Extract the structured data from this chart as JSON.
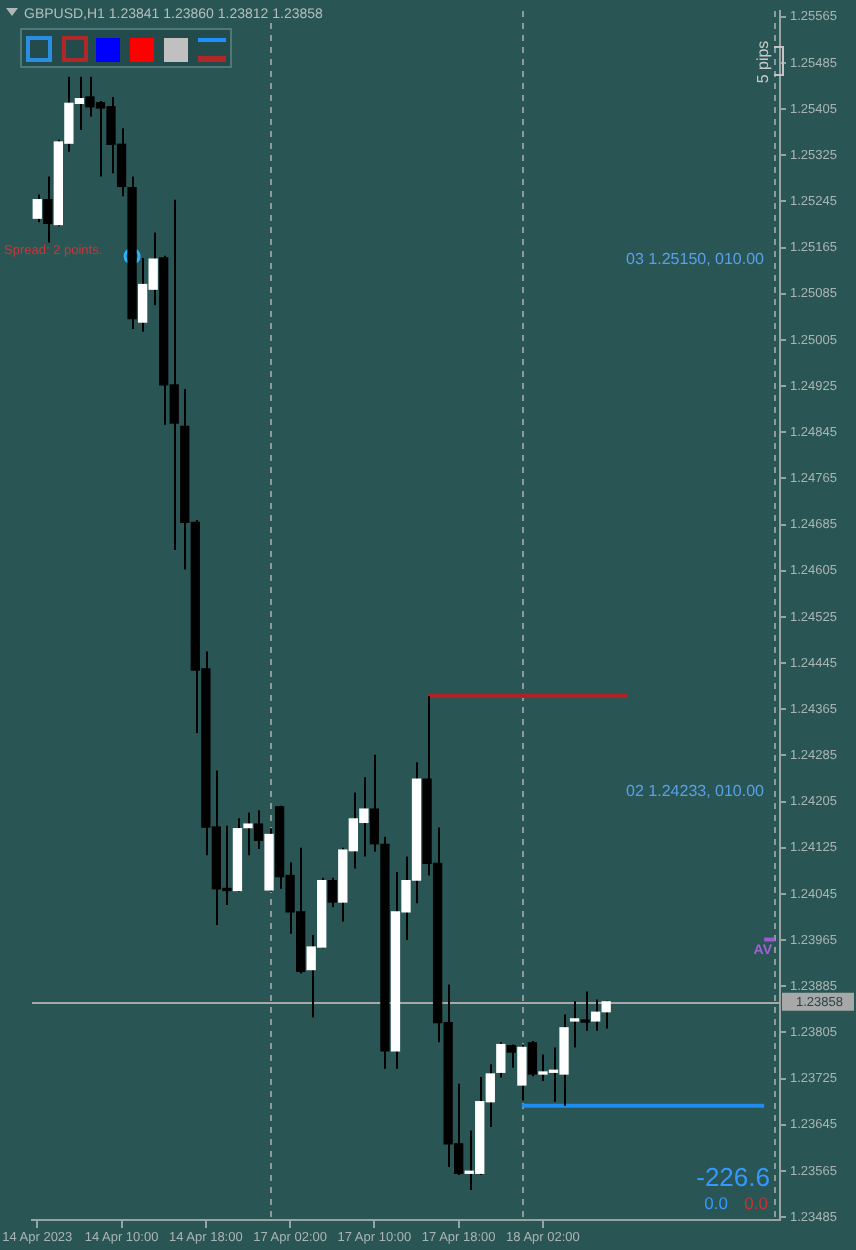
{
  "chart_data": {
    "type": "candlestick",
    "title": "GBPUSD,H1 1.23841 1.23860 1.23812 1.23858",
    "categories": [
      "14 Apr 2023",
      null,
      null,
      null,
      null,
      null,
      null,
      null,
      "14 Apr 10:00",
      null,
      null,
      null,
      null,
      null,
      null,
      null,
      "14 Apr 18:00",
      null,
      null,
      null,
      null,
      null,
      null,
      null,
      "17 Apr 02:00",
      null,
      null,
      null,
      null,
      null,
      null,
      null,
      "17 Apr 10:00",
      null,
      null,
      null,
      null,
      null,
      null,
      null,
      "17 Apr 18:00",
      null,
      null,
      null,
      null,
      null,
      null,
      null,
      "18 Apr 02:00",
      null,
      null,
      null,
      null,
      null,
      null,
      null,
      null,
      null,
      null,
      null,
      null,
      null,
      null,
      null,
      null,
      null,
      null,
      null,
      null,
      null,
      null
    ],
    "ohlc": [
      [
        1.25216,
        1.25257,
        1.25209,
        1.25248
      ],
      [
        1.25248,
        1.25288,
        1.25174,
        1.25207
      ],
      [
        1.25205,
        1.25352,
        1.25202,
        1.25348
      ],
      [
        1.25346,
        1.25461,
        1.25331,
        1.25415
      ],
      [
        1.25415,
        1.25461,
        1.25369,
        1.25423
      ],
      [
        1.25426,
        1.25461,
        1.25392,
        1.25409
      ],
      [
        1.25416,
        1.25419,
        1.25288,
        1.25407
      ],
      [
        1.25409,
        1.25426,
        1.25294,
        1.25344
      ],
      [
        1.25344,
        1.25372,
        1.25254,
        1.25271
      ],
      [
        1.25269,
        1.25288,
        1.25024,
        1.25042
      ],
      [
        1.25036,
        1.25147,
        1.25019,
        1.25101
      ],
      [
        1.25093,
        1.25191,
        1.25065,
        1.25145
      ],
      [
        1.25147,
        1.25151,
        1.24858,
        1.24927
      ],
      [
        1.24927,
        1.25248,
        1.24641,
        1.24861
      ],
      [
        1.24855,
        1.2492,
        1.24607,
        1.24689
      ],
      [
        1.24689,
        1.24693,
        1.24324,
        1.24433
      ],
      [
        1.24435,
        1.24465,
        1.24112,
        1.24161
      ],
      [
        1.24161,
        1.24259,
        1.23991,
        1.24054
      ],
      [
        1.24052,
        1.24163,
        1.24026,
        1.24051
      ],
      [
        1.24051,
        1.24176,
        1.24049,
        1.24158
      ],
      [
        1.2416,
        1.24186,
        1.24112,
        1.24166
      ],
      [
        1.24166,
        1.2419,
        1.24123,
        1.24138
      ],
      [
        1.24052,
        1.24159,
        1.24049,
        1.24148
      ],
      [
        1.24196,
        1.24198,
        1.24054,
        1.24075
      ],
      [
        1.24077,
        1.241,
        1.23976,
        1.24014
      ],
      [
        1.24014,
        1.24125,
        1.23907,
        1.23911
      ],
      [
        1.23914,
        1.23974,
        1.23831,
        1.23953
      ],
      [
        1.23953,
        1.24073,
        1.23951,
        1.24068
      ],
      [
        1.24068,
        1.24073,
        1.24022,
        1.24031
      ],
      [
        1.24031,
        1.24125,
        1.23997,
        1.24121
      ],
      [
        1.2412,
        1.24221,
        1.24089,
        1.24175
      ],
      [
        1.24169,
        1.24247,
        1.2411,
        1.24192
      ],
      [
        1.24192,
        1.24286,
        1.24118,
        1.24132
      ],
      [
        1.24131,
        1.24144,
        1.23742,
        1.23773
      ],
      [
        1.23773,
        1.24083,
        1.23742,
        1.24014
      ],
      [
        1.24014,
        1.2411,
        1.23965,
        1.24068
      ],
      [
        1.24069,
        1.24273,
        1.24029,
        1.24244
      ],
      [
        1.24244,
        1.24388,
        1.24077,
        1.24098
      ],
      [
        1.24098,
        1.2416,
        1.23788,
        1.23822
      ],
      [
        1.23822,
        1.23888,
        1.23572,
        1.23612
      ],
      [
        1.23612,
        1.23716,
        1.23558,
        1.23561
      ],
      [
        1.23561,
        1.23635,
        1.23532,
        1.23563
      ],
      [
        1.23561,
        1.23728,
        1.23558,
        1.23685
      ],
      [
        1.23685,
        1.2375,
        1.23641,
        1.23733
      ],
      [
        1.23736,
        1.23788,
        1.23727,
        1.23784
      ],
      [
        1.23782,
        1.23784,
        1.23744,
        1.23771
      ],
      [
        1.23714,
        1.23784,
        1.23687,
        1.23779
      ],
      [
        1.23787,
        1.2379,
        1.23729,
        1.23733
      ],
      [
        1.23733,
        1.23767,
        1.23721,
        1.23734
      ],
      [
        1.23736,
        1.23779,
        1.23685,
        1.23737
      ],
      [
        1.23733,
        1.23836,
        1.23678,
        1.23813
      ],
      [
        1.23825,
        1.23859,
        1.23779,
        1.23825
      ],
      [
        1.23825,
        1.23876,
        1.23808,
        1.23823
      ],
      [
        1.23825,
        1.23862,
        1.23808,
        1.2384
      ],
      [
        1.23841,
        1.2386,
        1.23812,
        1.23858
      ],
      null,
      null,
      null,
      null,
      null,
      null,
      null,
      null,
      null,
      null,
      null,
      null,
      null,
      null,
      null,
      null
    ],
    "colors": [
      "#ffffff",
      "#000000",
      "#ffffff",
      "#ffffff",
      "#ffffff",
      "#000000",
      "#000000",
      "#000000",
      "#000000",
      "#000000",
      "#ffffff",
      "#ffffff",
      "#000000",
      "#000000",
      "#000000",
      "#000000",
      "#000000",
      "#000000",
      "#000000",
      "#ffffff",
      "#ffffff",
      "#000000",
      "#ffffff",
      "#000000",
      "#000000",
      "#000000",
      "#ffffff",
      "#ffffff",
      "#000000",
      "#ffffff",
      "#ffffff",
      "#ffffff",
      "#000000",
      "#000000",
      "#ffffff",
      "#ffffff",
      "#ffffff",
      "#000000",
      "#000000",
      "#000000",
      "#000000",
      "#ffffff",
      "#ffffff",
      "#ffffff",
      "#ffffff",
      "#000000",
      "#ffffff",
      "#000000",
      "#ffffff",
      "#ffffff",
      "#ffffff",
      "#ffffff",
      "#000000",
      "#ffffff",
      "#ffffff",
      null,
      null,
      null,
      null,
      null,
      null,
      null,
      null,
      null,
      null,
      null,
      null,
      null,
      null,
      null,
      null
    ],
    "color": "#000000",
    "series": [
      {
        "type": "line",
        "color": "#b22222",
        "values": [
          null,
          null,
          null,
          null,
          null,
          null,
          null,
          null,
          null,
          null,
          null,
          null,
          null,
          null,
          null,
          null,
          null,
          null,
          null,
          null,
          null,
          null,
          null,
          null,
          null,
          null,
          null,
          null,
          null,
          null,
          null,
          null,
          null,
          null,
          null,
          null,
          null,
          1.24388,
          1.24388,
          1.24388,
          1.24388,
          1.24388,
          1.24388,
          1.24388,
          1.24388,
          1.24388,
          1.24388,
          1.24388,
          1.24388,
          1.24388,
          1.24388,
          1.24388,
          1.24388,
          1.24388,
          1.24388,
          1.24388,
          1.24388,
          null,
          null,
          null,
          null,
          null,
          null,
          null,
          null,
          null,
          null,
          null,
          null,
          null,
          null
        ]
      },
      {
        "type": "line",
        "color": "#1e8cf0",
        "values": [
          null,
          null,
          null,
          null,
          null,
          null,
          null,
          null,
          null,
          null,
          null,
          null,
          null,
          null,
          null,
          null,
          null,
          null,
          null,
          null,
          null,
          null,
          null,
          null,
          null,
          null,
          null,
          null,
          null,
          null,
          null,
          null,
          null,
          null,
          null,
          null,
          null,
          null,
          null,
          null,
          null,
          null,
          null,
          null,
          null,
          null,
          1.23678,
          1.23678,
          1.23678,
          1.23678,
          1.23678,
          1.23678,
          1.23678,
          1.23678,
          1.23678,
          1.23678,
          1.23678,
          1.23678,
          1.23678,
          1.23678,
          1.23678,
          1.23678,
          1.23678,
          1.23678,
          1.23678,
          1.23678,
          1.23678,
          1.23678,
          1.23678,
          1.23678,
          null
        ]
      },
      {
        "type": "line",
        "color": "#9a5ad0",
        "values": [
          null,
          null,
          null,
          null,
          null,
          null,
          null,
          null,
          null,
          null,
          null,
          null,
          null,
          null,
          null,
          null,
          null,
          null,
          null,
          null,
          null,
          null,
          null,
          null,
          null,
          null,
          null,
          null,
          null,
          null,
          null,
          null,
          null,
          null,
          null,
          null,
          null,
          null,
          null,
          null,
          null,
          null,
          null,
          null,
          null,
          null,
          null,
          null,
          null,
          null,
          null,
          null,
          null,
          null,
          null,
          null,
          null,
          null,
          null,
          null,
          null,
          null,
          null,
          null,
          null,
          null,
          null,
          null,
          null,
          1.23966,
          1.23966
        ]
      },
      {
        "type": "scatter",
        "color": "#2eb4ff",
        "marker": "circle",
        "values": [
          null,
          null,
          null,
          null,
          null,
          null,
          null,
          null,
          null,
          1.2515,
          null,
          null,
          null,
          null,
          null,
          null,
          null,
          null,
          null,
          null,
          null,
          null,
          null,
          null,
          null,
          null,
          null,
          null,
          null,
          null,
          null,
          null,
          null,
          null,
          null,
          null,
          null,
          null,
          null,
          null,
          null,
          null,
          null,
          null,
          null,
          null,
          null,
          null,
          null,
          null,
          null,
          null,
          null,
          null,
          null,
          null,
          null,
          null,
          null,
          null,
          null,
          null,
          null,
          null,
          null,
          null,
          null,
          null,
          null,
          null,
          null
        ]
      }
    ],
    "ylim": [
      1.2348,
      1.25575
    ],
    "yticks": [
      1.23485,
      1.23565,
      1.23645,
      1.23725,
      1.23805,
      1.23885,
      1.23965,
      1.24045,
      1.24125,
      1.24205,
      1.24285,
      1.24365,
      1.24445,
      1.24525,
      1.24605,
      1.24685,
      1.24765,
      1.24845,
      1.24925,
      1.25005,
      1.25085,
      1.25165,
      1.25245,
      1.25325,
      1.25405,
      1.25485,
      1.25565
    ],
    "grid": "x",
    "ref_lines": [
      {
        "axis": "y",
        "value": 1.23858,
        "label": "1.23858",
        "color": "#a8a8a8"
      }
    ],
    "annotations": [
      "Spread: 2 points.",
      "5 pips",
      "03 1.25150, 010.00",
      "02 1.24233, 010.00",
      {
        "text": "AV",
        "y": 1.23966
      },
      "-226.6",
      "0.0",
      "0.0"
    ]
  }
}
